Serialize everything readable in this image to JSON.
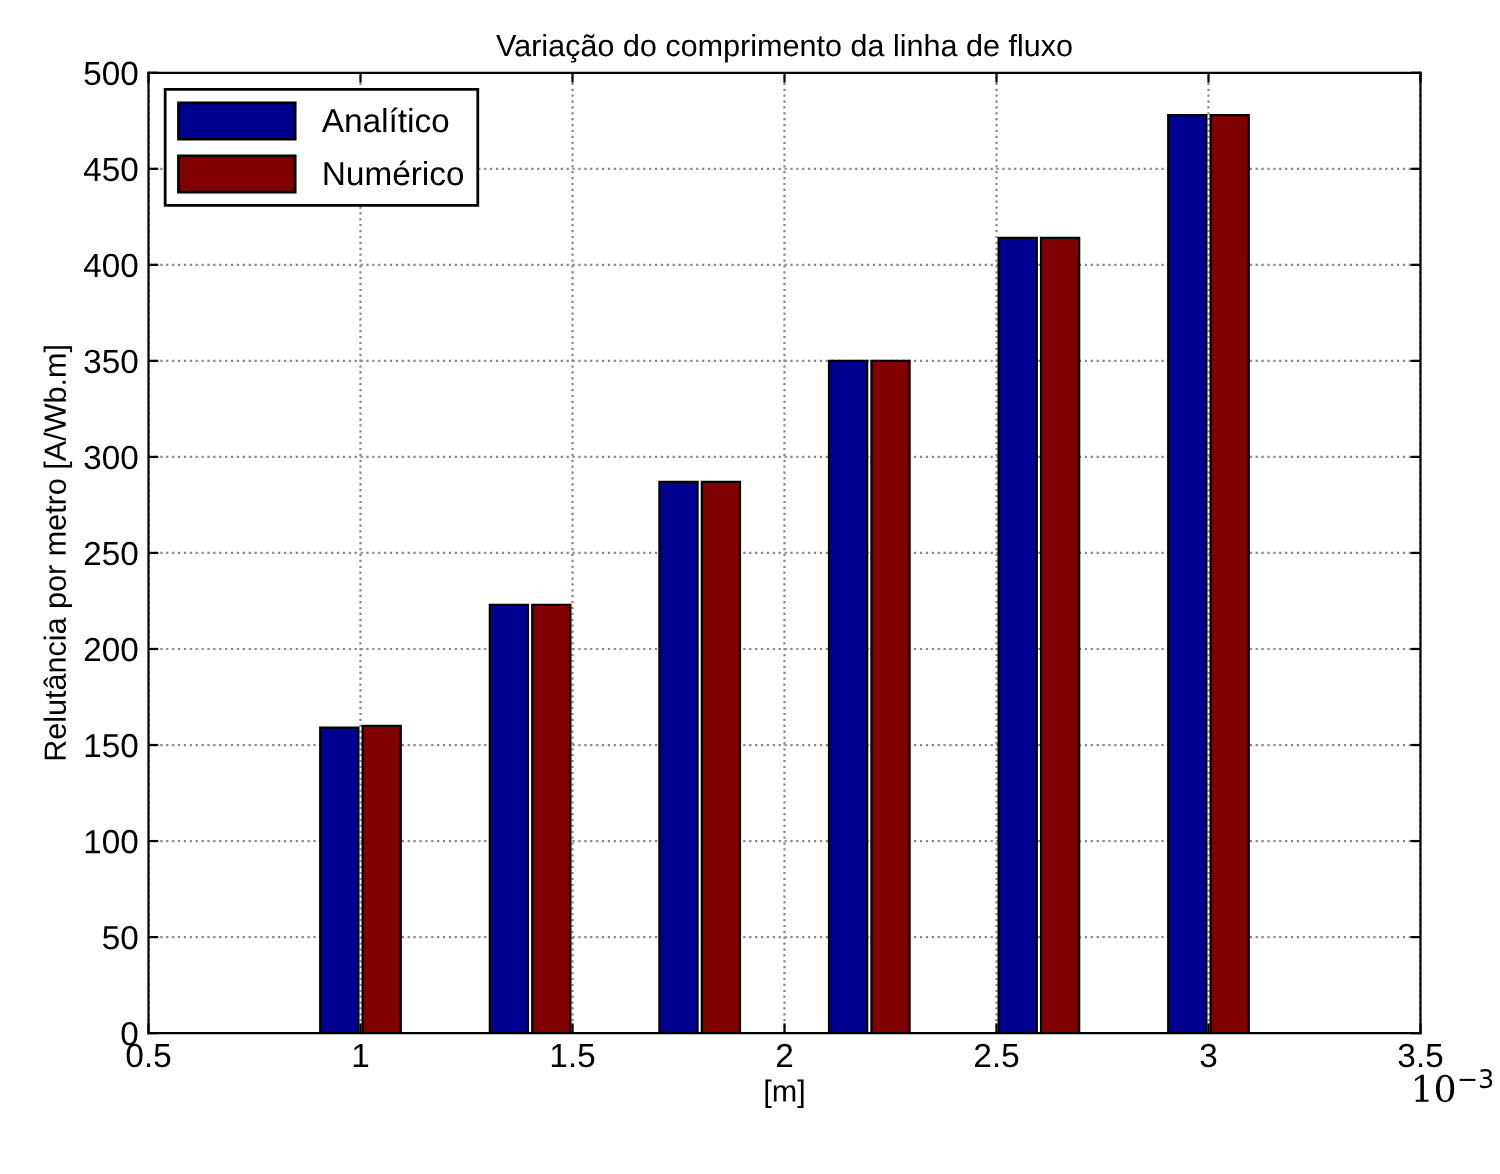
{
  "chart_data": {
    "type": "bar",
    "title": "Variação do comprimento da linha de fluxo",
    "xlabel": "[m]",
    "ylabel": "Relutância por metro [A/Wb.m]",
    "x": [
      1.0,
      1.4,
      1.8,
      2.2,
      2.6,
      3.0
    ],
    "series": [
      {
        "name": "Analítico",
        "color": "#000090",
        "values": [
          159,
          223,
          287,
          350,
          414,
          478
        ]
      },
      {
        "name": "Numérico",
        "color": "#800000",
        "values": [
          160,
          223,
          287,
          350,
          414,
          478
        ]
      }
    ],
    "xlim": [
      0.5,
      3.5
    ],
    "xticks": [
      0.5,
      1,
      1.5,
      2,
      2.5,
      3,
      3.5
    ],
    "ylim": [
      0,
      500
    ],
    "yticks": [
      0,
      50,
      100,
      150,
      200,
      250,
      300,
      350,
      400,
      450,
      500
    ],
    "annotations": [
      "10$^{−3}$"
    ],
    "grid": true,
    "legend": "top left"
  }
}
